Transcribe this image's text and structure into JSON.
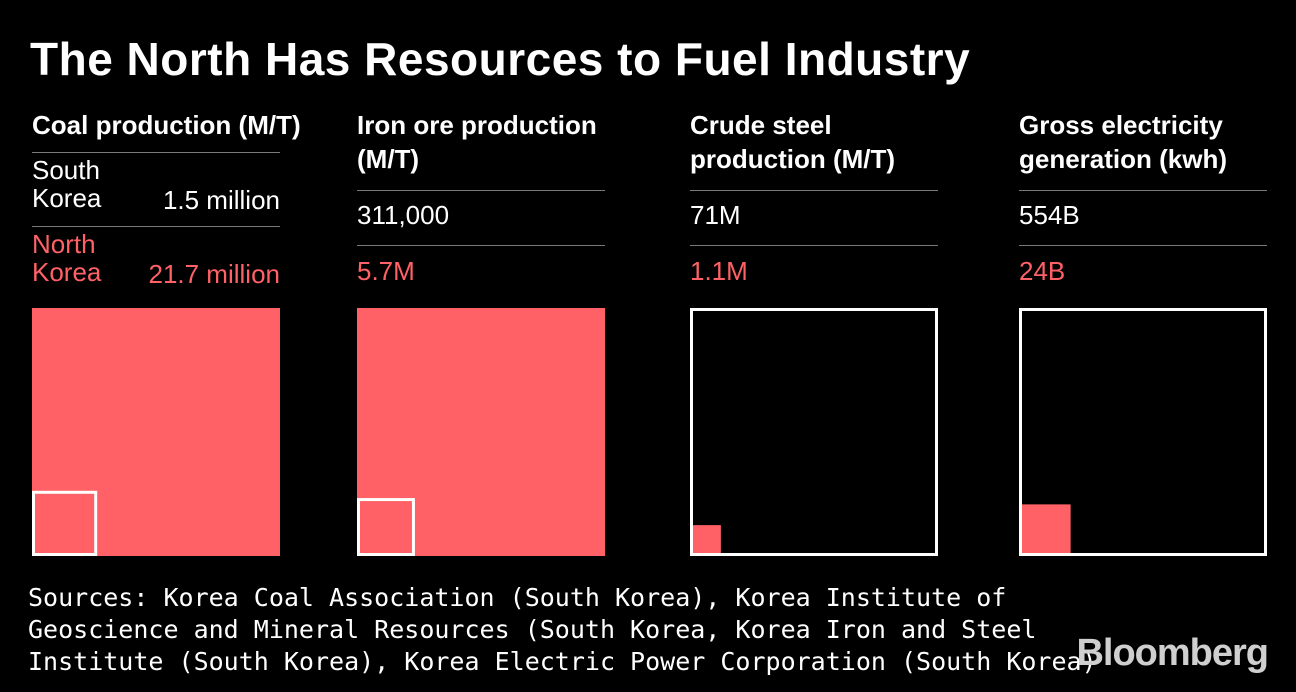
{
  "title": "The North Has Resources to Fuel Industry",
  "colors": {
    "north": "#ff6166",
    "south_outline": "#ffffff",
    "background": "#000000"
  },
  "chart_data": [
    {
      "type": "proportional-area",
      "title": "Coal production (M/T)",
      "series": [
        {
          "name": "South Korea",
          "label": "1.5 million",
          "value": 1500000
        },
        {
          "name": "North Korea",
          "label": "21.7 million",
          "value": 21700000
        }
      ]
    },
    {
      "type": "proportional-area",
      "title": "Iron ore production (M/T)",
      "series": [
        {
          "name": "South Korea",
          "label": "311,000",
          "value": 311000
        },
        {
          "name": "North Korea",
          "label": "5.7M",
          "value": 5700000
        }
      ]
    },
    {
      "type": "proportional-area",
      "title": "Crude steel production (M/T)",
      "series": [
        {
          "name": "South Korea",
          "label": "71M",
          "value": 71000000
        },
        {
          "name": "North Korea",
          "label": "1.1M",
          "value": 1100000
        }
      ]
    },
    {
      "type": "proportional-area",
      "title": "Gross electricity generation (kwh)",
      "series": [
        {
          "name": "South Korea",
          "label": "554B",
          "value": 554000000000
        },
        {
          "name": "North Korea",
          "label": "24B",
          "value": 24000000000
        }
      ]
    }
  ],
  "sources": [
    "Sources: Korea Coal Association (South Korea), Korea Institute of",
    "Geoscience and Mineral Resources (South Korea, Korea Iron and Steel",
    "Institute (South Korea), Korea Electric Power Corporation (South Korea)"
  ],
  "logo": "Bloomberg"
}
